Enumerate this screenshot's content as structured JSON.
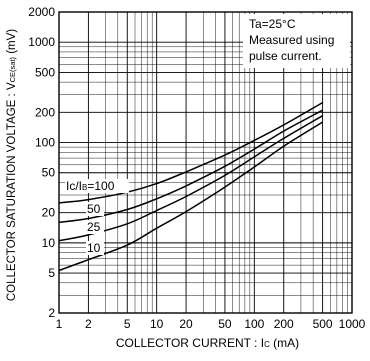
{
  "chart_data": {
    "type": "line",
    "x_scale": "log",
    "y_scale": "log",
    "xlim": [
      1,
      1000
    ],
    "ylim": [
      2,
      2000
    ],
    "xlabel": "COLLECTOR  CURRENT : I",
    "xlabel_sub": "C",
    "xlabel_unit": " (mA)",
    "ylabel": "COLLECTOR  SATURATION  VOLTAGE : V",
    "ylabel_sub": "CE(sat)",
    "ylabel_unit": " (mV)",
    "x_ticks": [
      {
        "value": 1,
        "label": "1"
      },
      {
        "value": 2,
        "label": "2"
      },
      {
        "value": 5,
        "label": "5"
      },
      {
        "value": 10,
        "label": "10"
      },
      {
        "value": 20,
        "label": "20"
      },
      {
        "value": 50,
        "label": "50"
      },
      {
        "value": 100,
        "label": "100"
      },
      {
        "value": 200,
        "label": "200"
      },
      {
        "value": 500,
        "label": "500"
      },
      {
        "value": 1000,
        "label": "1000"
      }
    ],
    "y_ticks": [
      {
        "value": 2,
        "label": "2"
      },
      {
        "value": 5,
        "label": "5"
      },
      {
        "value": 10,
        "label": "10"
      },
      {
        "value": 20,
        "label": "20"
      },
      {
        "value": 50,
        "label": "50"
      },
      {
        "value": 100,
        "label": "100"
      },
      {
        "value": 200,
        "label": "200"
      },
      {
        "value": 500,
        "label": "500"
      },
      {
        "value": 1000,
        "label": "1000"
      },
      {
        "value": 2000,
        "label": "2000"
      }
    ],
    "grid": true,
    "annotations": {
      "condition_lines": [
        "Ta=25°C",
        "Measured using",
        "pulse current."
      ]
    },
    "series": [
      {
        "name": "I C/IB=100",
        "label_main": "Ic/I",
        "label_sub": "B",
        "label_tail": "=100",
        "x": [
          1,
          2,
          5,
          10,
          20,
          50,
          100,
          200,
          500
        ],
        "y": [
          25,
          27,
          32,
          39,
          51,
          75,
          105,
          150,
          250
        ]
      },
      {
        "name": "50",
        "label_main": "50",
        "label_sub": "",
        "label_tail": "",
        "x": [
          1,
          2,
          5,
          10,
          20,
          50,
          100,
          200,
          500
        ],
        "y": [
          16,
          17.5,
          21.5,
          27.5,
          37,
          58,
          86,
          130,
          210
        ]
      },
      {
        "name": "25",
        "label_main": "25",
        "label_sub": "",
        "label_tail": "",
        "x": [
          1,
          2,
          5,
          10,
          20,
          50,
          100,
          200,
          500
        ],
        "y": [
          10.5,
          12,
          15.5,
          21,
          29,
          47,
          72,
          110,
          185
        ]
      },
      {
        "name": "10",
        "label_main": "10",
        "label_sub": "",
        "label_tail": "",
        "x": [
          1,
          2,
          5,
          10,
          20,
          50,
          100,
          200,
          500
        ],
        "y": [
          5.3,
          6.8,
          9.5,
          14,
          20.5,
          36,
          57,
          92,
          160
        ]
      }
    ]
  }
}
